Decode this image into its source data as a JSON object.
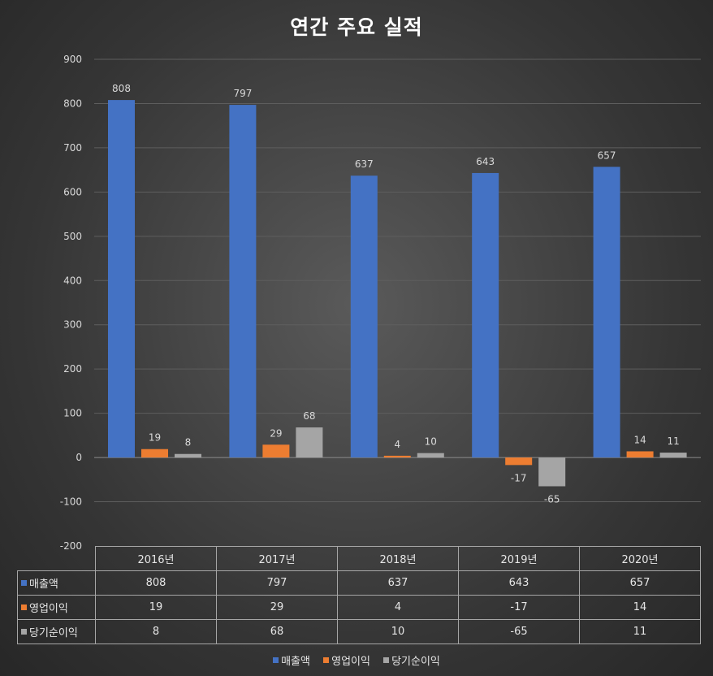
{
  "chart_data": {
    "type": "bar",
    "title": "연간 주요 실적",
    "categories": [
      "2016년",
      "2017년",
      "2018년",
      "2019년",
      "2020년"
    ],
    "series": [
      {
        "name": "매출액",
        "color": "#4472c4",
        "values": [
          808,
          797,
          637,
          643,
          657
        ]
      },
      {
        "name": "영업이익",
        "color": "#ed7d31",
        "values": [
          19,
          29,
          4,
          -17,
          14
        ]
      },
      {
        "name": "당기순이익",
        "color": "#a5a5a5",
        "values": [
          8,
          68,
          10,
          -65,
          11
        ]
      }
    ],
    "ylim": [
      -200,
      900
    ],
    "yticks": [
      "-200",
      "-100",
      "0",
      "100",
      "200",
      "300",
      "400",
      "500",
      "600",
      "700",
      "800",
      "900"
    ],
    "grid": true,
    "data_table": true,
    "legend_position": "bottom"
  }
}
